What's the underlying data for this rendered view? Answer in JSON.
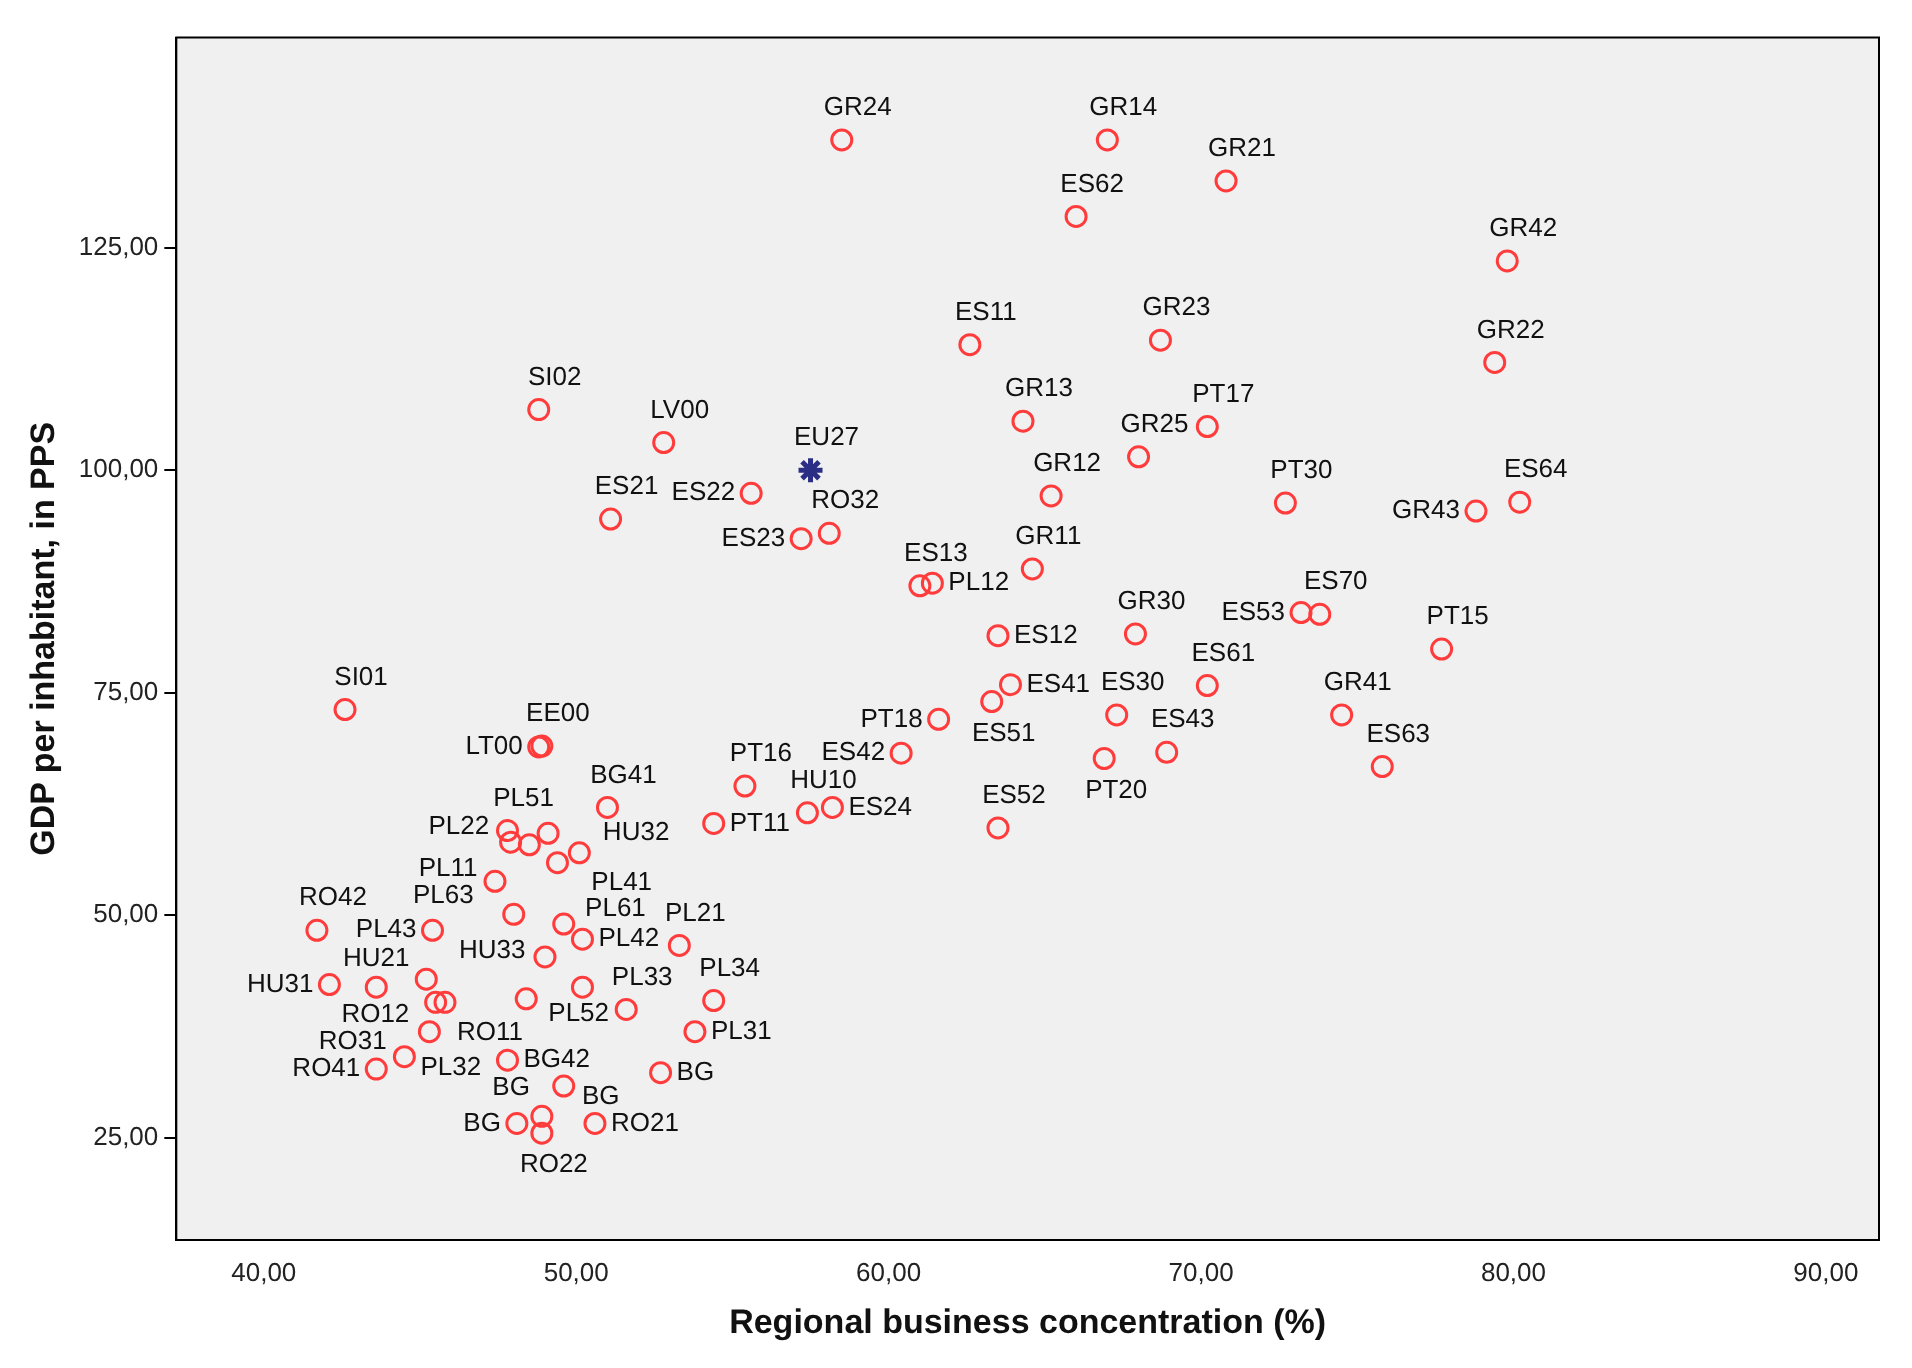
{
  "chart_data": {
    "type": "scatter",
    "xlabel": "Regional business concentration (%)",
    "ylabel": "GDP per inhabitant, in PPS",
    "xlim": [
      37.2,
      91.7
    ],
    "ylim": [
      13.5,
      148.6
    ],
    "xticks": [
      {
        "value": 40,
        "label": "40,00"
      },
      {
        "value": 50,
        "label": "50,00"
      },
      {
        "value": 60,
        "label": "60,00"
      },
      {
        "value": 70,
        "label": "70,00"
      },
      {
        "value": 80,
        "label": "80,00"
      },
      {
        "value": 90,
        "label": "90,00"
      }
    ],
    "yticks": [
      {
        "value": 25,
        "label": "25,00"
      },
      {
        "value": 50,
        "label": "50,00"
      },
      {
        "value": 75,
        "label": "75,00"
      },
      {
        "value": 100,
        "label": "100,00"
      },
      {
        "value": 125,
        "label": "125,00"
      }
    ],
    "grid": false,
    "legend": false,
    "series": [
      {
        "color": "#ff3b3b",
        "marker": "circle",
        "x": [
          58.5,
          67.0,
          70.8,
          66.0,
          79.8,
          62.6,
          68.7,
          79.4,
          48.8,
          64.3,
          70.2,
          52.8,
          68.0,
          55.6,
          51.1,
          65.2,
          72.7,
          78.8,
          80.2,
          58.1,
          57.2,
          61.0,
          61.4,
          64.6,
          73.8,
          73.2,
          63.5,
          67.9,
          77.7,
          63.9,
          63.3,
          70.2,
          61.6,
          67.3,
          74.5,
          42.6,
          48.9,
          48.8,
          68.9,
          66.9,
          60.4,
          75.8,
          55.4,
          51.0,
          58.2,
          57.4,
          54.4,
          63.5,
          47.8,
          49.1,
          47.9,
          48.5,
          50.1,
          49.4,
          47.4,
          48.0,
          49.6,
          41.7,
          45.4,
          50.2,
          53.3,
          49.0,
          45.2,
          42.1,
          43.6,
          50.2,
          54.4,
          45.8,
          45.5,
          48.4,
          51.6,
          45.3,
          53.8,
          44.5,
          47.8,
          43.6,
          52.7,
          49.6,
          48.1,
          48.9,
          48.9,
          50.6
        ],
        "values": [
          137.1,
          137.1,
          132.5,
          128.5,
          123.5,
          114.1,
          114.6,
          112.1,
          106.8,
          105.5,
          104.9,
          103.1,
          101.5,
          97.4,
          94.5,
          97.1,
          96.3,
          95.4,
          96.4,
          92.9,
          92.3,
          87.0,
          87.3,
          88.9,
          83.8,
          84.0,
          81.4,
          81.6,
          79.9,
          75.9,
          74.0,
          75.8,
          72.0,
          72.5,
          72.5,
          73.1,
          69.0,
          68.9,
          68.3,
          67.6,
          68.2,
          66.7,
          64.5,
          62.1,
          62.1,
          61.5,
          60.3,
          59.8,
          59.5,
          59.2,
          58.2,
          57.9,
          57.0,
          55.9,
          53.8,
          50.1,
          49.0,
          48.3,
          48.3,
          47.3,
          46.6,
          45.3,
          42.8,
          42.2,
          41.9,
          41.9,
          40.4,
          40.2,
          40.2,
          40.6,
          39.4,
          36.9,
          36.9,
          34.1,
          33.7,
          32.7,
          32.3,
          30.8,
          26.6,
          27.4,
          25.5,
          26.6
        ]
      },
      {
        "color": "#2a2f85",
        "marker": "cross",
        "x": [
          57.5
        ],
        "values": [
          100.0
        ]
      }
    ],
    "annotations": [
      {
        "text": "GR24",
        "x": 58.5,
        "y": 137.1
      },
      {
        "text": "GR14",
        "x": 67.0,
        "y": 137.1
      },
      {
        "text": "GR21",
        "x": 70.8,
        "y": 132.5
      },
      {
        "text": "ES62",
        "x": 66.0,
        "y": 128.5
      },
      {
        "text": "GR42",
        "x": 79.8,
        "y": 123.5
      },
      {
        "text": "ES11",
        "x": 62.6,
        "y": 114.1
      },
      {
        "text": "GR23",
        "x": 68.7,
        "y": 114.6
      },
      {
        "text": "GR22",
        "x": 79.4,
        "y": 112.1
      },
      {
        "text": "SI02",
        "x": 48.8,
        "y": 106.8
      },
      {
        "text": "GR13",
        "x": 64.3,
        "y": 105.5
      },
      {
        "text": "PT17",
        "x": 70.2,
        "y": 104.9
      },
      {
        "text": "LV00",
        "x": 52.8,
        "y": 103.1
      },
      {
        "text": "GR25",
        "x": 68.0,
        "y": 101.5
      },
      {
        "text": "EU27",
        "x": 57.5,
        "y": 100.0
      },
      {
        "text": "ES22",
        "x": 55.6,
        "y": 97.4
      },
      {
        "text": "ES21",
        "x": 51.1,
        "y": 94.5
      },
      {
        "text": "GR12",
        "x": 65.2,
        "y": 97.1
      },
      {
        "text": "PT30",
        "x": 72.7,
        "y": 96.3
      },
      {
        "text": "GR43",
        "x": 78.8,
        "y": 95.4
      },
      {
        "text": "ES64",
        "x": 80.2,
        "y": 96.4
      },
      {
        "text": "RO32",
        "x": 58.1,
        "y": 92.9
      },
      {
        "text": "ES23",
        "x": 57.2,
        "y": 92.3
      },
      {
        "text": "ES13",
        "x": 61.0,
        "y": 87.0
      },
      {
        "text": "PL12",
        "x": 61.4,
        "y": 87.3
      },
      {
        "text": "GR11",
        "x": 64.6,
        "y": 88.9
      },
      {
        "text": "ES70",
        "x": 73.8,
        "y": 83.8
      },
      {
        "text": "ES53",
        "x": 73.2,
        "y": 84.0
      },
      {
        "text": "ES12",
        "x": 63.5,
        "y": 81.4
      },
      {
        "text": "GR30",
        "x": 67.9,
        "y": 81.6
      },
      {
        "text": "PT15",
        "x": 77.7,
        "y": 79.9
      },
      {
        "text": "ES41",
        "x": 63.9,
        "y": 75.9
      },
      {
        "text": "ES51",
        "x": 63.3,
        "y": 74.0
      },
      {
        "text": "ES61",
        "x": 70.2,
        "y": 75.8
      },
      {
        "text": "PT18",
        "x": 61.6,
        "y": 72.0
      },
      {
        "text": "ES30",
        "x": 67.3,
        "y": 72.5
      },
      {
        "text": "GR41",
        "x": 74.5,
        "y": 72.5
      },
      {
        "text": "SI01",
        "x": 42.6,
        "y": 73.1
      },
      {
        "text": "EE00",
        "x": 48.9,
        "y": 69.0
      },
      {
        "text": "LT00",
        "x": 48.8,
        "y": 68.9
      },
      {
        "text": "ES43",
        "x": 68.9,
        "y": 68.3
      },
      {
        "text": "PT20",
        "x": 66.9,
        "y": 67.6
      },
      {
        "text": "ES42",
        "x": 60.4,
        "y": 68.2
      },
      {
        "text": "ES63",
        "x": 75.8,
        "y": 66.7
      },
      {
        "text": "PT16",
        "x": 55.4,
        "y": 64.5
      },
      {
        "text": "BG41",
        "x": 51.0,
        "y": 62.1
      },
      {
        "text": "ES24",
        "x": 58.2,
        "y": 62.1
      },
      {
        "text": "HU10",
        "x": 57.4,
        "y": 61.5
      },
      {
        "text": "PT11",
        "x": 54.4,
        "y": 60.3
      },
      {
        "text": "ES52",
        "x": 63.5,
        "y": 59.8
      },
      {
        "text": "PL51",
        "x": 47.8,
        "y": 59.5
      },
      {
        "text": "HU32",
        "x": 49.1,
        "y": 59.2
      },
      {
        "text": "PL22",
        "x": 47.9,
        "y": 58.2
      },
      {
        "text": "PL11",
        "x": 48.5,
        "y": 57.9
      },
      {
        "text": "PL41",
        "x": 50.1,
        "y": 57.0
      },
      {
        "text": "PL63",
        "x": 47.4,
        "y": 53.8
      },
      {
        "text": "HU33",
        "x": 48.0,
        "y": 50.1
      },
      {
        "text": "PL61",
        "x": 49.6,
        "y": 49.0
      },
      {
        "text": "RO42",
        "x": 41.7,
        "y": 48.3
      },
      {
        "text": "PL43",
        "x": 45.4,
        "y": 48.3
      },
      {
        "text": "PL42",
        "x": 50.2,
        "y": 47.3
      },
      {
        "text": "PL21",
        "x": 53.3,
        "y": 46.6
      },
      {
        "text": "PL52",
        "x": 49.0,
        "y": 45.3
      },
      {
        "text": "RO12",
        "x": 45.2,
        "y": 42.8
      },
      {
        "text": "HU31",
        "x": 42.1,
        "y": 42.2
      },
      {
        "text": "HU21",
        "x": 43.6,
        "y": 41.9
      },
      {
        "text": "PL34",
        "x": 54.4,
        "y": 40.4
      },
      {
        "text": "RO11",
        "x": 45.8,
        "y": 40.2
      },
      {
        "text": "PL33",
        "x": 51.6,
        "y": 39.4
      },
      {
        "text": "PL32",
        "x": 45.3,
        "y": 36.9
      },
      {
        "text": "PL31",
        "x": 53.8,
        "y": 36.9
      },
      {
        "text": "RO31",
        "x": 44.5,
        "y": 34.1
      },
      {
        "text": "BG42",
        "x": 47.8,
        "y": 33.7
      },
      {
        "text": "RO41",
        "x": 43.6,
        "y": 32.7
      },
      {
        "text": "BG",
        "x": 52.7,
        "y": 32.3
      },
      {
        "text": "BG",
        "x": 49.6,
        "y": 30.8
      },
      {
        "text": "BG",
        "x": 48.1,
        "y": 26.6
      },
      {
        "text": "BG",
        "x": 48.9,
        "y": 27.4
      },
      {
        "text": "RO22",
        "x": 48.9,
        "y": 25.5
      },
      {
        "text": "RO21",
        "x": 50.6,
        "y": 26.6
      }
    ]
  }
}
